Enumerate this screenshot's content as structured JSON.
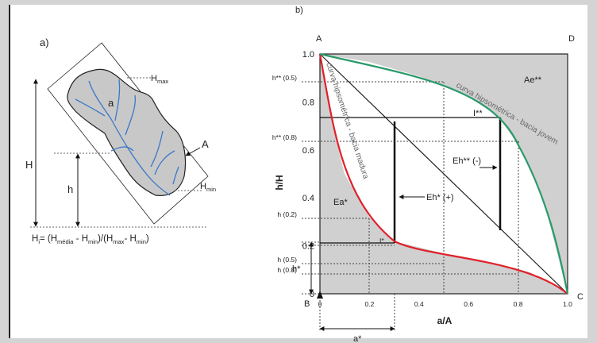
{
  "panel_a": {
    "label": "a)",
    "h_max": {
      "base": "H",
      "sub": "max"
    },
    "area": "a",
    "outline": "A",
    "height_total": "H",
    "height": "h",
    "h_min": {
      "base": "H",
      "sub": "min"
    },
    "formula": [
      "H",
      "i",
      "= (H",
      "média",
      " - H",
      "min",
      ")/(H",
      "max",
      "- H",
      "min",
      ")"
    ]
  },
  "panel_b": {
    "label": "b)",
    "corners": {
      "top_left": "A",
      "top_right": "D",
      "bottom_left": "B",
      "bottom_right": "C"
    },
    "y_axis_title": "h/H",
    "x_axis_title": "a/A",
    "y_ticks": [
      "1.0",
      "0.8",
      "0.6",
      "0.4",
      "0.2",
      "0"
    ],
    "x_ticks": [
      "0",
      "0.2",
      "0.4",
      "0.6",
      "0.8",
      "1.0"
    ],
    "guide_labels": [
      "h** (0.5)",
      "h** (0.8)",
      "h (0.2)",
      "h (0.5)",
      "h (0.8)"
    ],
    "h_star": "h*",
    "a_star": "a*",
    "region_mature": "Ea*",
    "region_young": "Ae**",
    "excess_mature": "Eh* (+)",
    "excess_young": "Eh** (-)",
    "point_young": "I**",
    "point_mature": "I*",
    "curve_mature": "curva hipsométrica - bacia madura",
    "curve_young": "curva hipsométrica - bacia jovem"
  }
}
